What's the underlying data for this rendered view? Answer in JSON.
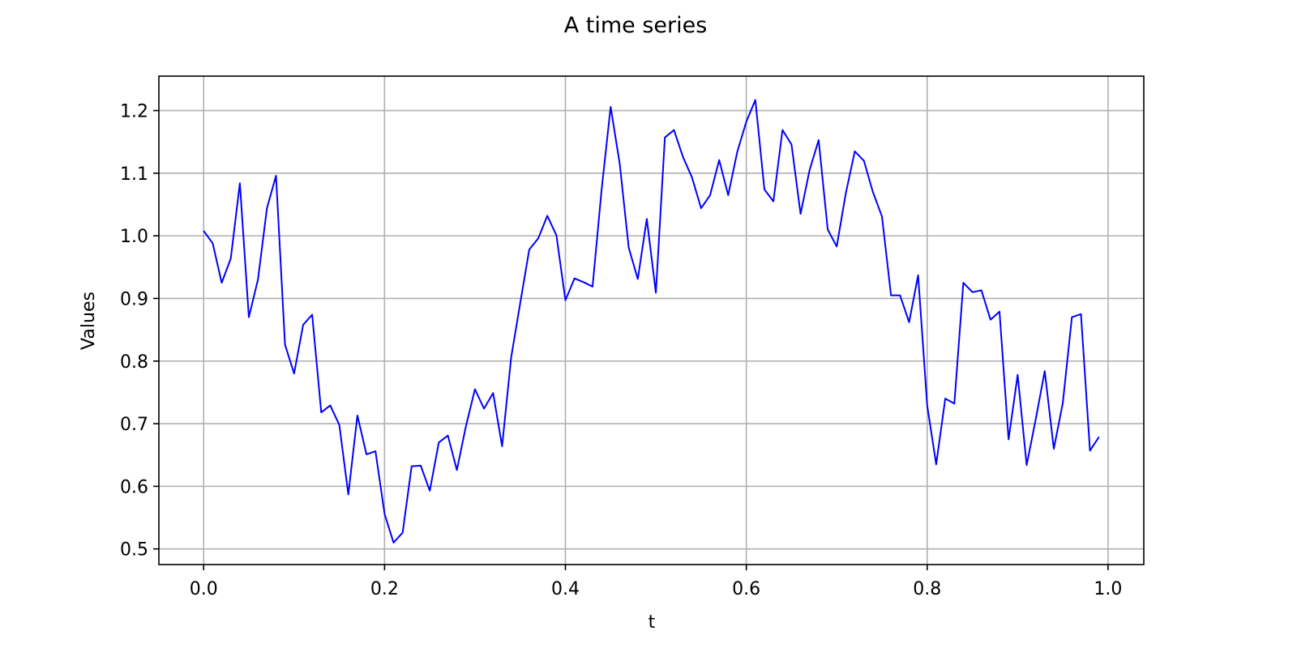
{
  "chart_data": {
    "type": "line",
    "title": "A time series",
    "xlabel": "t",
    "ylabel": "Values",
    "xlim": [
      -0.0495,
      1.0395
    ],
    "ylim": [
      0.475,
      1.255
    ],
    "x_ticks": [
      0.0,
      0.2,
      0.4,
      0.6,
      0.8,
      1.0
    ],
    "x_tick_labels": [
      "0.0",
      "0.2",
      "0.4",
      "0.6",
      "0.8",
      "1.0"
    ],
    "y_ticks": [
      0.5,
      0.6,
      0.7,
      0.8,
      0.9,
      1.0,
      1.1,
      1.2
    ],
    "y_tick_labels": [
      "0.5",
      "0.6",
      "0.7",
      "0.8",
      "0.9",
      "1.0",
      "1.1",
      "1.2"
    ],
    "grid": true,
    "legend": "none",
    "colors": {
      "line": "#0000ff",
      "grid": "#b0b0b0",
      "frame": "#000000"
    },
    "x": [
      0.0,
      0.01,
      0.02,
      0.03,
      0.04,
      0.05,
      0.06,
      0.07,
      0.08,
      0.09,
      0.1,
      0.11,
      0.12,
      0.13,
      0.14,
      0.15,
      0.16,
      0.17,
      0.18,
      0.19,
      0.2,
      0.21,
      0.22,
      0.23,
      0.24,
      0.25,
      0.26,
      0.27,
      0.28,
      0.29,
      0.3,
      0.31,
      0.32,
      0.33,
      0.34,
      0.35,
      0.36,
      0.37,
      0.38,
      0.39,
      0.4,
      0.41,
      0.42,
      0.43,
      0.44,
      0.45,
      0.46,
      0.47,
      0.48,
      0.49,
      0.5,
      0.51,
      0.52,
      0.53,
      0.54,
      0.55,
      0.56,
      0.57,
      0.58,
      0.59,
      0.6,
      0.61,
      0.62,
      0.63,
      0.64,
      0.65,
      0.66,
      0.67,
      0.68,
      0.69,
      0.7,
      0.71,
      0.72,
      0.73,
      0.74,
      0.75,
      0.76,
      0.77,
      0.78,
      0.79,
      0.8,
      0.81,
      0.82,
      0.83,
      0.84,
      0.85,
      0.86,
      0.87,
      0.88,
      0.89,
      0.9,
      0.91,
      0.92,
      0.93,
      0.94,
      0.95,
      0.96,
      0.97,
      0.98,
      0.99
    ],
    "series": [
      {
        "values": [
          1.008,
          0.988,
          0.925,
          0.964,
          1.084,
          0.87,
          0.93,
          1.044,
          1.096,
          0.826,
          0.78,
          0.858,
          0.874,
          0.718,
          0.729,
          0.698,
          0.587,
          0.713,
          0.651,
          0.656,
          0.556,
          0.51,
          0.526,
          0.632,
          0.633,
          0.593,
          0.67,
          0.681,
          0.626,
          0.696,
          0.755,
          0.724,
          0.749,
          0.664,
          0.806,
          0.892,
          0.978,
          0.996,
          1.032,
          1.001,
          0.897,
          0.932,
          0.926,
          0.919,
          1.073,
          1.206,
          1.115,
          0.981,
          0.931,
          1.027,
          0.909,
          1.157,
          1.169,
          1.126,
          1.093,
          1.044,
          1.065,
          1.121,
          1.065,
          1.134,
          1.182,
          1.217,
          1.074,
          1.055,
          1.169,
          1.146,
          1.035,
          1.105,
          1.153,
          1.01,
          0.983,
          1.068,
          1.135,
          1.12,
          1.07,
          1.031,
          0.905,
          0.905,
          0.862,
          0.937,
          0.729,
          0.635,
          0.74,
          0.732,
          0.925,
          0.91,
          0.913,
          0.866,
          0.879,
          0.675,
          0.778,
          0.634,
          0.707,
          0.784,
          0.66,
          0.733,
          0.87,
          0.875,
          0.657,
          0.679
        ]
      }
    ]
  }
}
